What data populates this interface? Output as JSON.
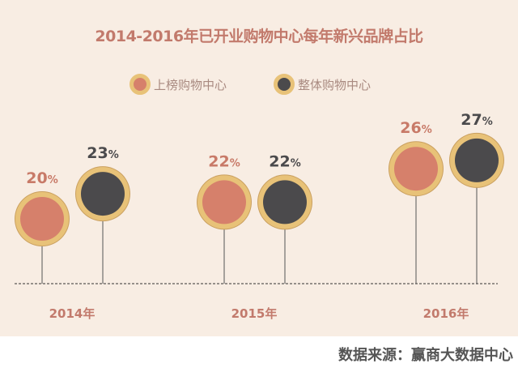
{
  "chart_data": {
    "type": "scatter",
    "title": "2014-2016年已开业购物中心每年新兴品牌占比",
    "categories": [
      "2014年",
      "2015年",
      "2016年"
    ],
    "series": [
      {
        "name": "上榜购物中心",
        "values": [
          20,
          22,
          26
        ],
        "color": "#d6806b"
      },
      {
        "name": "整体购物中心",
        "values": [
          23,
          22,
          27
        ],
        "color": "#4b4a4c"
      }
    ],
    "unit": "%",
    "ring_color": "#e8c278",
    "legend_position": "top",
    "grid": false
  },
  "source": "数据来源：赢商大数据中心"
}
